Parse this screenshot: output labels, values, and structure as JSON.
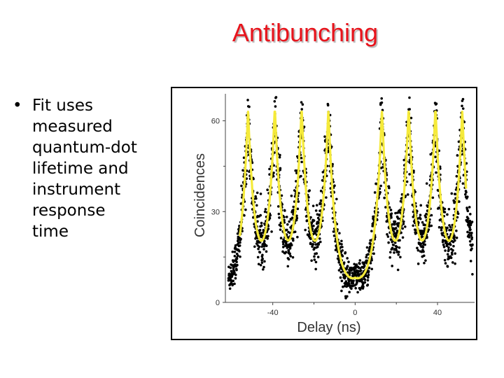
{
  "slide": {
    "title": "Antibunching",
    "bullet": "Fit uses measured quantum-dot lifetime and instrument response time"
  },
  "chart_data": {
    "type": "scatter",
    "title": "",
    "xlabel": "Delay (ns)",
    "ylabel": "Coincidences",
    "xlim": [
      -63,
      58
    ],
    "ylim": [
      0,
      68
    ],
    "xticks": [
      -40,
      0,
      40
    ],
    "yticks": [
      0,
      30,
      60
    ],
    "grid": false,
    "peak_period_ns": 13,
    "peak_centers_ns": [
      -52,
      -39,
      -26,
      -13,
      13,
      26,
      39,
      52
    ],
    "series": [
      {
        "name": "",
        "kind": "scatter",
        "color": "#000000",
        "description_values": "measured coincidences",
        "side_peak_max": 63,
        "dip_min": 10,
        "center_peak_value": 7
      },
      {
        "name": "",
        "kind": "line",
        "color": "#f5ea3a",
        "fit_side_peak_max": 63,
        "fit_dip_min": 18,
        "fit_center_min": 5
      }
    ],
    "colors": {
      "title": "#e8141c",
      "fit": "#f5ea3a",
      "points": "#000000",
      "axis": "#444444"
    }
  }
}
